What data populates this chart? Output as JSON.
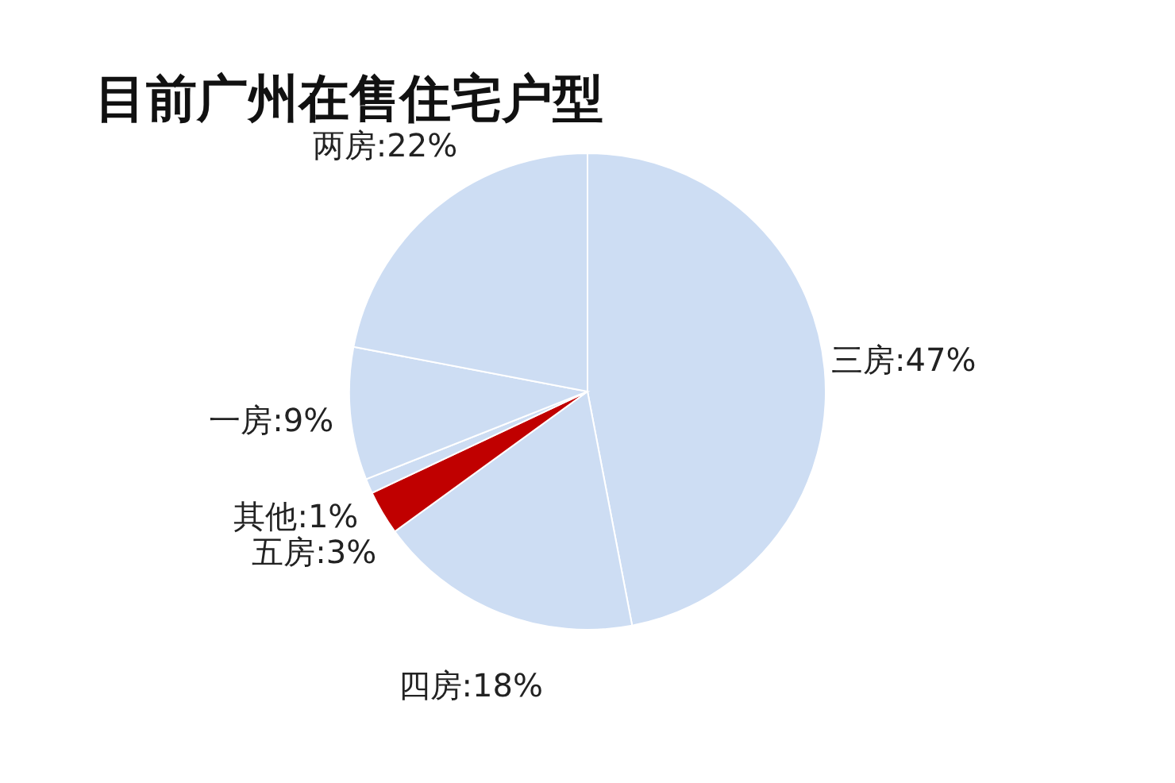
{
  "chart_data": {
    "type": "pie",
    "title": "目前广州在售住宅户型",
    "categories": [
      "三房",
      "四房",
      "五房",
      "其他",
      "一房",
      "两房"
    ],
    "values": [
      47,
      18,
      3,
      1,
      9,
      22
    ],
    "value_labels": [
      "47%",
      "18%",
      "3%",
      "1%",
      "9%",
      "22%"
    ],
    "colors": [
      "#cdddf3",
      "#cdddf3",
      "#c00000",
      "#cdddf3",
      "#cdddf3",
      "#cdddf3"
    ]
  }
}
